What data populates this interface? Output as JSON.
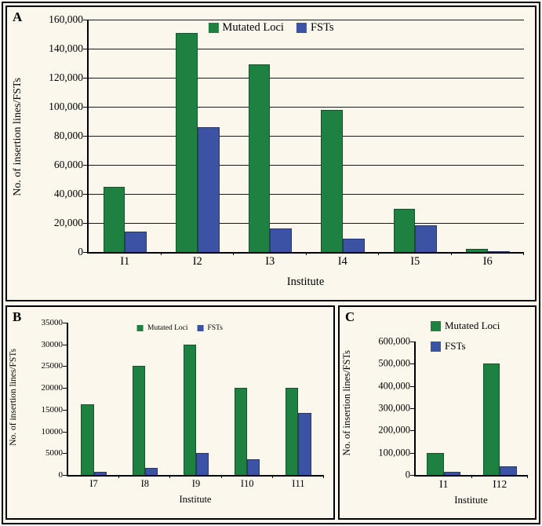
{
  "figure": {
    "background_color": "#fbf7ec",
    "border_color": "#000000",
    "panel_labels": [
      "A",
      "B",
      "C"
    ]
  },
  "chart_data": [
    {
      "panel": "A",
      "type": "bar",
      "categories": [
        "I1",
        "I2",
        "I3",
        "I4",
        "I5",
        "I6"
      ],
      "series": [
        {
          "name": "Mutated Loci",
          "color": "#1e8142",
          "values": [
            45000,
            151000,
            129000,
            98000,
            30000,
            2000
          ]
        },
        {
          "name": "FSTs",
          "color": "#3c52a5",
          "values": [
            14000,
            86000,
            16000,
            9000,
            18500,
            400
          ]
        }
      ],
      "xlabel": "Institute",
      "ylabel": "No. of insertion lines/FSTs",
      "ylim": [
        0,
        160000
      ],
      "ytick_step": 20000,
      "ytick_format": "comma",
      "grid": true,
      "bar_width_frac": 0.3,
      "legend_position": "top-center"
    },
    {
      "panel": "B",
      "type": "bar",
      "categories": [
        "I7",
        "I8",
        "I9",
        "I10",
        "I11"
      ],
      "series": [
        {
          "name": "Mutated Loci",
          "color": "#1e8142",
          "values": [
            16200,
            25000,
            30000,
            20000,
            20100
          ]
        },
        {
          "name": "FSTs",
          "color": "#3c52a5",
          "values": [
            700,
            1600,
            5000,
            3600,
            14300
          ]
        }
      ],
      "xlabel": "Institute",
      "ylabel": "No. of insertion lines/FSTs",
      "ylim": [
        0,
        35000
      ],
      "ytick_step": 5000,
      "ytick_format": "plain",
      "grid": false,
      "bar_width_frac": 0.25,
      "legend_position": "top-center"
    },
    {
      "panel": "C",
      "type": "bar",
      "categories": [
        "I1",
        "I12"
      ],
      "series": [
        {
          "name": "Mutated Loci",
          "color": "#1e8142",
          "values": [
            100000,
            500000
          ]
        },
        {
          "name": "FSTs",
          "color": "#3c52a5",
          "values": [
            15000,
            40000
          ]
        }
      ],
      "xlabel": "Institute",
      "ylabel": "No. of insertion lines/FSTs",
      "ylim": [
        0,
        600000
      ],
      "ytick_step": 100000,
      "ytick_format": "comma",
      "grid": false,
      "bar_width_frac": 0.3,
      "legend_position": "top-right-vertical"
    }
  ]
}
